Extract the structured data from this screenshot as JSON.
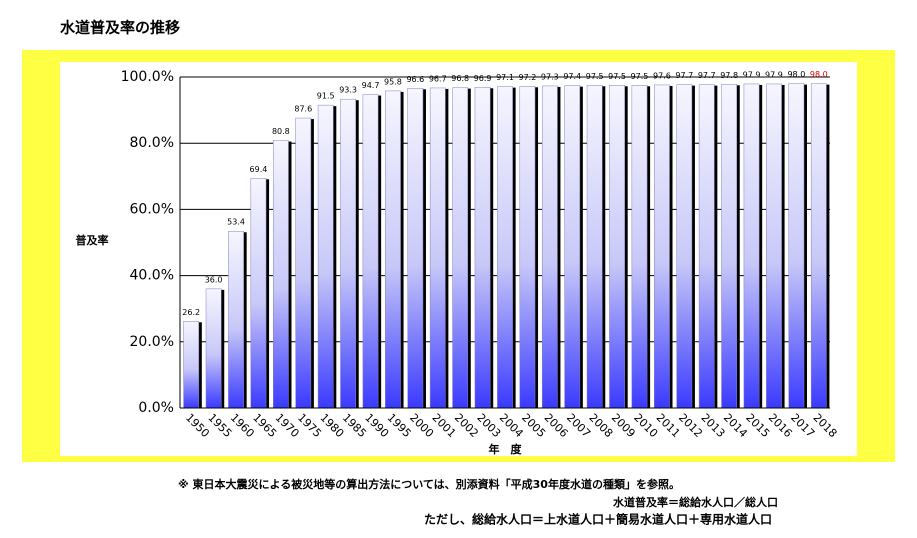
{
  "chart_data": {
    "type": "bar",
    "title": "水道普及率の推移",
    "ylabel": "普及率",
    "xlabel": "年　度",
    "categories": [
      "1950",
      "1955",
      "1960",
      "1965",
      "1970",
      "1975",
      "1980",
      "1985",
      "1990",
      "1995",
      "2000",
      "2001",
      "2002",
      "2003",
      "2004",
      "2005",
      "2006",
      "2007",
      "2008",
      "2009",
      "2010",
      "2011",
      "2012",
      "2013",
      "2014",
      "2015",
      "2016",
      "2017",
      "2018"
    ],
    "values": [
      26.2,
      36.0,
      53.4,
      69.4,
      80.8,
      87.6,
      91.5,
      93.3,
      94.7,
      95.8,
      96.6,
      96.7,
      96.8,
      96.9,
      97.1,
      97.2,
      97.3,
      97.4,
      97.5,
      97.5,
      97.5,
      97.6,
      97.7,
      97.7,
      97.8,
      97.9,
      97.9,
      98.0,
      98.0
    ],
    "value_labels": [
      "26.2",
      "36.0",
      "53.4",
      "69.4",
      "80.8",
      "87.6",
      "91.5",
      "93.3",
      "94.7",
      "95.8",
      "96.6",
      "96.7",
      "96.8",
      "96.9",
      "97.1",
      "97.2",
      "97.3",
      "97.4",
      "97.5",
      "97.5",
      "97.5",
      "97.6",
      "97.7",
      "97.7",
      "97.8",
      "97.9",
      "97.9",
      "98.0",
      "98.0"
    ],
    "value_label_colors": [
      "#000000",
      "#000000",
      "#000000",
      "#000000",
      "#000000",
      "#000000",
      "#000000",
      "#000000",
      "#000000",
      "#000000",
      "#000000",
      "#000000",
      "#000000",
      "#000000",
      "#000000",
      "#000000",
      "#000000",
      "#000000",
      "#000000",
      "#000000",
      "#000000",
      "#000000",
      "#000000",
      "#000000",
      "#000000",
      "#000000",
      "#000000",
      "#000000",
      "#e00000"
    ],
    "color": "#3a3aff",
    "ylim": [
      0,
      100
    ],
    "yticks": [
      {
        "value": 0,
        "label": "0.0%"
      },
      {
        "value": 20,
        "label": "20.0%"
      },
      {
        "value": 40,
        "label": "40.0%"
      },
      {
        "value": 60,
        "label": "60.0%"
      },
      {
        "value": 80,
        "label": "80.0%"
      },
      {
        "value": 100,
        "label": "100.0%"
      }
    ],
    "grid": true
  },
  "notes": [
    "※ 東日本大震災による被災地等の算出方法については、別添資料「平成30年度水道の種類」を参照。",
    "水道普及率＝総給水人口／総人口",
    "ただし、総給水人口＝上水道人口＋簡易水道人口＋専用水道人口"
  ]
}
